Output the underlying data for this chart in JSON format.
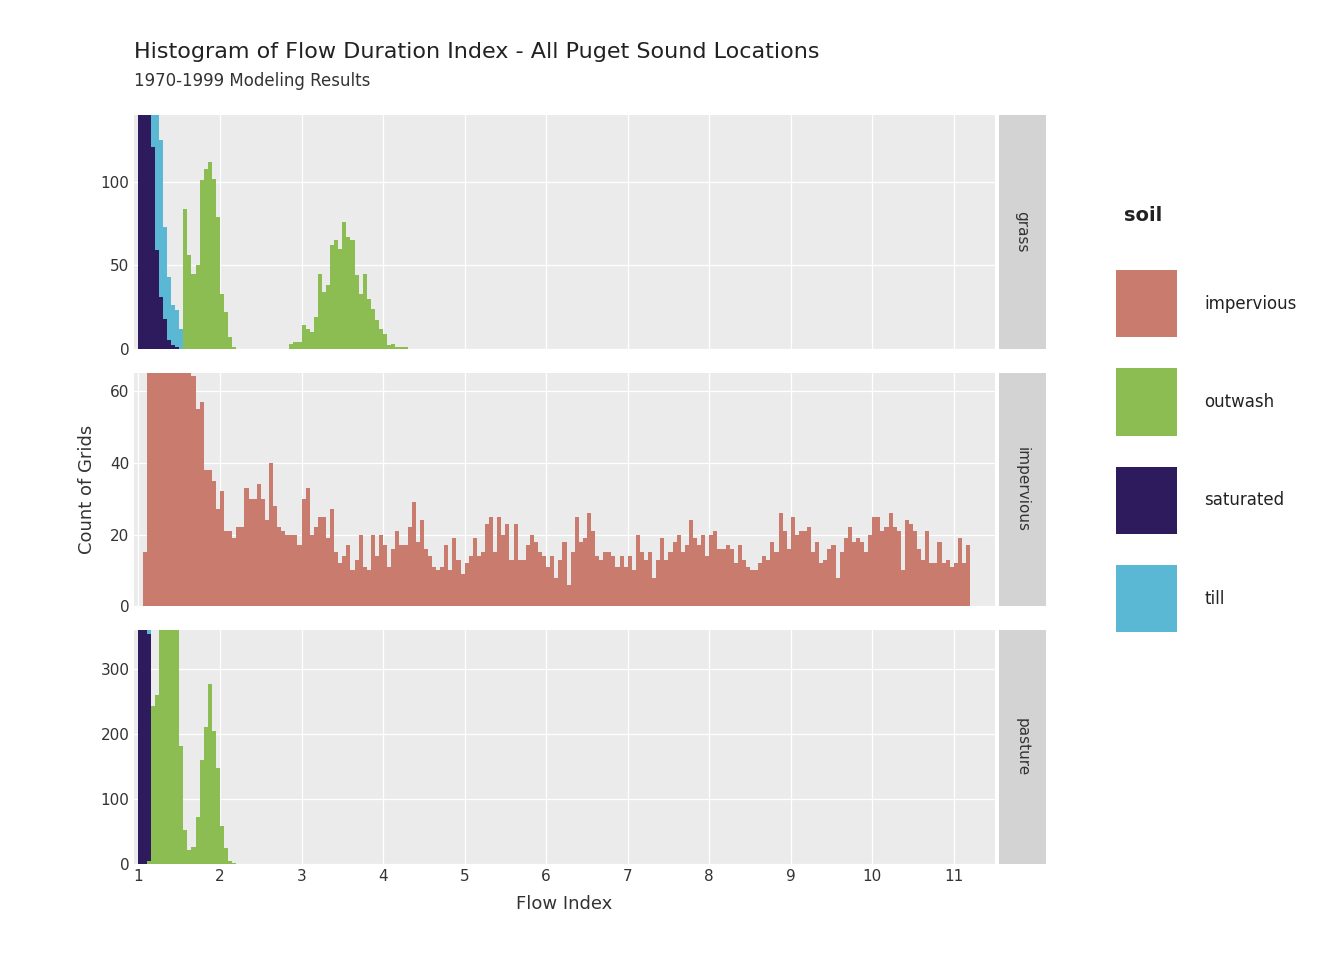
{
  "title": "Histogram of Flow Duration Index - All Puget Sound Locations",
  "subtitle": "1970-1999 Modeling Results",
  "xlabel": "Flow Index",
  "ylabel": "Count of Grids",
  "facets": [
    "grass",
    "impervious",
    "pasture"
  ],
  "soil_colors": {
    "impervious": "#C97B6E",
    "outwash": "#8BBD52",
    "saturated": "#2D1B5E",
    "till": "#5BB8D4"
  },
  "legend_title": "soil",
  "figure_bg": "#FFFFFF",
  "panel_bg": "#EBEBEB",
  "strip_bg": "#D3D3D3",
  "grid_color": "#FFFFFF",
  "x_min": 1.0,
  "x_max": 11.5,
  "x_ticks": [
    1,
    2,
    3,
    4,
    5,
    6,
    7,
    8,
    9,
    10,
    11
  ],
  "grass_ylim": [
    0,
    140
  ],
  "grass_yticks": [
    0,
    50,
    100
  ],
  "impervious_ylim": [
    0,
    65
  ],
  "impervious_yticks": [
    0,
    20,
    40,
    60
  ],
  "pasture_ylim": [
    0,
    360
  ],
  "pasture_yticks": [
    0,
    100,
    200,
    300
  ],
  "bin_width": 0.05
}
